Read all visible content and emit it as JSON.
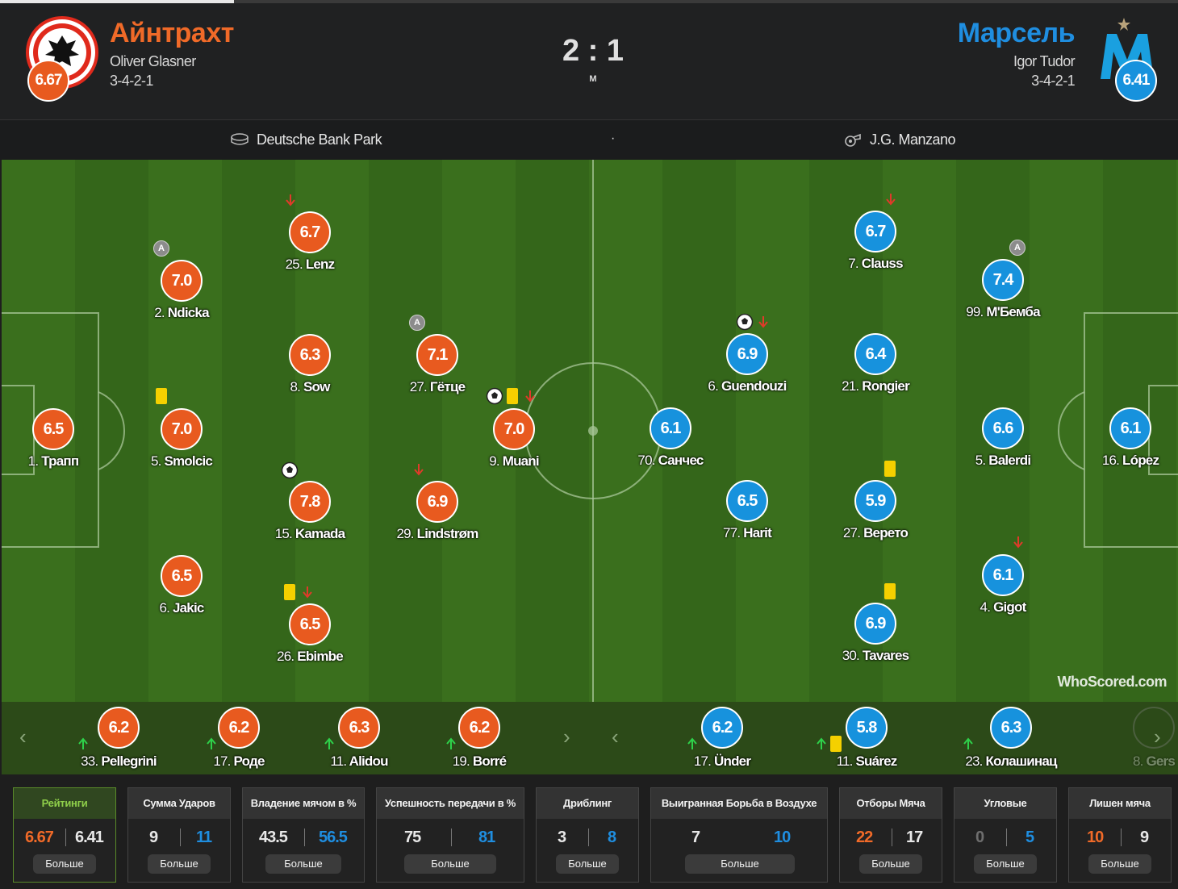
{
  "header": {
    "home": {
      "name": "Айнтрахт",
      "manager": "Oliver Glasner",
      "formation": "3-4-2-1",
      "rating": "6.67",
      "color": "#e85a1f"
    },
    "away": {
      "name": "Марсель",
      "manager": "Igor Tudor",
      "formation": "3-4-2-1",
      "rating": "6.41",
      "color": "#1792dd"
    },
    "score": "2 : 1",
    "status": "М"
  },
  "info": {
    "stadium": "Deutsche Bank Park",
    "separator": "·",
    "referee": "J.G. Manzano"
  },
  "home_players": [
    {
      "id": "trapp",
      "num": "1.",
      "name": "Трапп",
      "rating": "6.5"
    },
    {
      "id": "ndicka",
      "num": "2.",
      "name": "Ndicka",
      "rating": "7.0"
    },
    {
      "id": "smolcic",
      "num": "5.",
      "name": "Smolcic",
      "rating": "7.0"
    },
    {
      "id": "jakic",
      "num": "6.",
      "name": "Jakic",
      "rating": "6.5"
    },
    {
      "id": "lenz",
      "num": "25.",
      "name": "Lenz",
      "rating": "6.7"
    },
    {
      "id": "sow",
      "num": "8.",
      "name": "Sow",
      "rating": "6.3"
    },
    {
      "id": "kamada",
      "num": "15.",
      "name": "Kamada",
      "rating": "7.8"
    },
    {
      "id": "ebimbe",
      "num": "26.",
      "name": "Ebimbe",
      "rating": "6.5"
    },
    {
      "id": "gotze",
      "num": "27.",
      "name": "Гётце",
      "rating": "7.1"
    },
    {
      "id": "lindstrom",
      "num": "29.",
      "name": "Lindstrøm",
      "rating": "6.9"
    },
    {
      "id": "muani",
      "num": "9.",
      "name": "Muani",
      "rating": "7.0"
    }
  ],
  "away_players": [
    {
      "id": "sanchez",
      "num": "70.",
      "name": "Санчес",
      "rating": "6.1"
    },
    {
      "id": "guendouzi",
      "num": "6.",
      "name": "Guendouzi",
      "rating": "6.9"
    },
    {
      "id": "harit",
      "num": "77.",
      "name": "Harit",
      "rating": "6.5"
    },
    {
      "id": "clauss",
      "num": "7.",
      "name": "Clauss",
      "rating": "6.7"
    },
    {
      "id": "rongier",
      "num": "21.",
      "name": "Rongier",
      "rating": "6.4"
    },
    {
      "id": "veretout",
      "num": "27.",
      "name": "Верето",
      "rating": "5.9"
    },
    {
      "id": "tavares",
      "num": "30.",
      "name": "Tavares",
      "rating": "6.9"
    },
    {
      "id": "mbemba",
      "num": "99.",
      "name": "М'Бемба",
      "rating": "7.4"
    },
    {
      "id": "balerdi",
      "num": "5.",
      "name": "Balerdi",
      "rating": "6.6"
    },
    {
      "id": "gigot",
      "num": "4.",
      "name": "Gigot",
      "rating": "6.1"
    },
    {
      "id": "lopez",
      "num": "16.",
      "name": "López",
      "rating": "6.1"
    }
  ],
  "home_subs": [
    {
      "num": "33.",
      "name": "Pellegrini",
      "rating": "6.2"
    },
    {
      "num": "17.",
      "name": "Роде",
      "rating": "6.2"
    },
    {
      "num": "11.",
      "name": "Alidou",
      "rating": "6.3"
    },
    {
      "num": "19.",
      "name": "Borré",
      "rating": "6.2"
    }
  ],
  "away_subs": [
    {
      "num": "17.",
      "name": "Ünder",
      "rating": "6.2"
    },
    {
      "num": "11.",
      "name": "Suárez",
      "rating": "5.8"
    },
    {
      "num": "23.",
      "name": "Колашинац",
      "rating": "6.3"
    },
    {
      "num": "8.",
      "name": "Gers",
      "rating": ""
    }
  ],
  "captain_label": "A",
  "watermark": {
    "main": "WhoScored",
    "suffix": ".com"
  },
  "nav": {
    "prev": "‹",
    "next": "›"
  },
  "stats": [
    {
      "title": "Рейтинги",
      "home": "6.67",
      "away": "6.41",
      "more": "Больше",
      "active": true
    },
    {
      "title": "Сумма Ударов",
      "home": "9",
      "away": "11",
      "more": "Больше"
    },
    {
      "title": "Владение мячом в %",
      "home": "43.5",
      "away": "56.5",
      "more": "Больше"
    },
    {
      "title": "Успешность передачи в %",
      "home": "75",
      "away": "81",
      "more": "Больше"
    },
    {
      "title": "Дриблинг",
      "home": "3",
      "away": "8",
      "more": "Больше"
    },
    {
      "title": "Выигранная Борьба в Воздухе",
      "home": "7",
      "away": "10",
      "more": "Больше"
    },
    {
      "title": "Отборы Мяча",
      "home": "22",
      "away": "17",
      "more": "Больше"
    },
    {
      "title": "Угловые",
      "home": "0",
      "away": "5",
      "more": "Больше"
    },
    {
      "title": "Лишен мяча",
      "home": "10",
      "away": "9",
      "more": "Больше"
    }
  ]
}
